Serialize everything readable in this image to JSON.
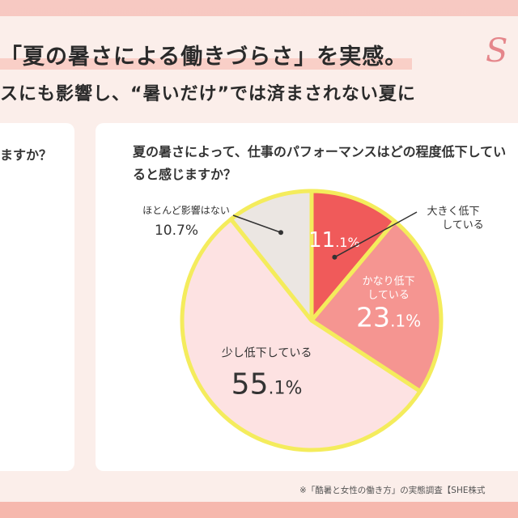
{
  "header": {
    "title": "「夏の暑さによる働きづらさ」を実感。",
    "subtitle": "スにも影響し、“暑いだけ”では済まされない夏に",
    "logo_text": "S"
  },
  "left_card": {
    "question_fragment": "ますか？"
  },
  "footnote": "※「酷暑と女性の働き方」の実態調査【SHE株式",
  "colors": {
    "slice_large": "#f05a5a",
    "slice_medium": "#f59591",
    "slice_small": "#fde2e2",
    "slice_none": "#ebe6e2",
    "outline": "#f4ec5c"
  },
  "chart_data": {
    "type": "pie",
    "title": "夏の暑さによって、仕事のパフォーマンスはどの程度低下していると感じますか？",
    "slices": [
      {
        "label": "大きく低下している",
        "value": 11.1,
        "display": "11.1%"
      },
      {
        "label": "かなり低下している",
        "value": 23.1,
        "display": "23.1%"
      },
      {
        "label": "少し低下している",
        "value": 55.1,
        "display": "55.1%"
      },
      {
        "label": "ほとんど影響はない",
        "value": 10.7,
        "display": "10.7%"
      }
    ]
  }
}
